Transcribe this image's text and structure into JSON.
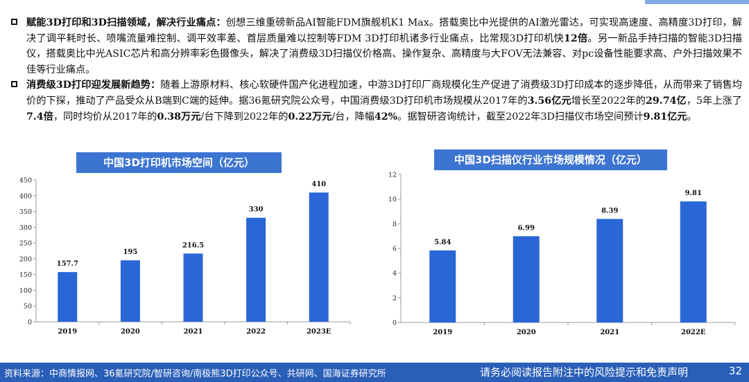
{
  "paragraphs": [
    {
      "runs": [
        {
          "t": "赋能3D打印和3D扫描领域，解决行业痛点：",
          "b": true
        },
        {
          "t": "创想三维重磅新品AI智能FDM旗舰机K1 Max。搭载奥比中光提供的AI激光雷达，可实现高速度、高精度3D打印，解决了调平耗时长、喷嘴流量难控制、调平效率差、首层质量难以控制等FDM 3D打印机诸多行业痛点，比常规3D打印机快",
          "b": false
        },
        {
          "t": "12倍",
          "b": true
        },
        {
          "t": "。另一新品手持扫描的智能3D扫描仪，搭载奥比中光ASIC芯片和高分辨率彩色摄像头，解决了消费级3D扫描仪价格高、操作复杂、高精度与大FOV无法兼容、对pc设备性能要求高、户外扫描效果不佳等行业痛点。",
          "b": false
        }
      ]
    },
    {
      "runs": [
        {
          "t": "消费级3D打印迎发展新趋势：",
          "b": true
        },
        {
          "t": "随着上游原材料、核心软硬件国产化进程加速，中游3D打印厂商规模化生产促进了消费级3D打印成本的逐步降低，从而带来了销售均价的下探，推动了产品受众从B端到C端的延伸。据36氪研究院公众号，中国消费级3D打印机市场规模从2017年的",
          "b": false
        },
        {
          "t": "3.56亿元",
          "b": true
        },
        {
          "t": "增长至2022年的",
          "b": false
        },
        {
          "t": "29.74亿",
          "b": true
        },
        {
          "t": "，5年上涨了",
          "b": false
        },
        {
          "t": "7.4倍",
          "b": true
        },
        {
          "t": "，同时均价从2017年的",
          "b": false
        },
        {
          "t": "0.38万元",
          "b": true
        },
        {
          "t": "/台下降到2022年的",
          "b": false
        },
        {
          "t": "0.22万元",
          "b": true
        },
        {
          "t": "/台，降幅",
          "b": false
        },
        {
          "t": "42%",
          "b": true
        },
        {
          "t": "。据智研咨询统计，截至2022年3D扫描仪市场空间预计",
          "b": false
        },
        {
          "t": "9.81亿元",
          "b": true
        },
        {
          "t": "。",
          "b": false
        }
      ]
    }
  ],
  "chart_data": [
    {
      "type": "bar",
      "title": "中国3D打印机市场空间（亿元）",
      "categories": [
        "2019",
        "2020",
        "2021",
        "2022",
        "2023E"
      ],
      "values": [
        157.7,
        195,
        216.5,
        330,
        410
      ],
      "value_labels": [
        "157.7",
        "195",
        "216.5",
        "330",
        "410"
      ],
      "yticks": [
        0,
        50,
        100,
        150,
        200,
        250,
        300,
        350,
        400,
        450
      ],
      "ylim": [
        0,
        450
      ],
      "grid": false,
      "bar_color": "#2a67d6"
    },
    {
      "type": "bar",
      "title": "中国3D扫描仪行业市场规模情况（亿元）",
      "categories": [
        "2019",
        "2020",
        "2021",
        "2022E"
      ],
      "values": [
        5.84,
        6.99,
        8.39,
        9.81
      ],
      "value_labels": [
        "5.84",
        "6.99",
        "8.39",
        "9.81"
      ],
      "yticks": [
        0,
        2,
        4,
        6,
        8,
        10,
        12
      ],
      "ylim": [
        0,
        12
      ],
      "grid": false,
      "bar_color": "#2a67d6"
    }
  ],
  "footer": {
    "source": "资料来源：中商情报网、36氪研究院/智研咨询/南极熊3D打印公众号、共研网、国海证券研究所",
    "disclaimer": "请务必阅读报告附注中的风险提示和免责声明",
    "page": "32"
  }
}
